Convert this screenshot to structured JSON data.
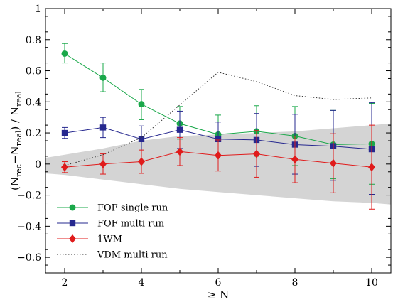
{
  "chart_data": {
    "type": "line",
    "xlabel": "≥ N",
    "ylabel": {
      "p1": "(N",
      "s1": "rec",
      "p2": "−N",
      "s2": "real",
      "p3": ") / N",
      "s3": "real"
    },
    "xlim": [
      1.5,
      10.5
    ],
    "ylim": [
      -0.7,
      1.0
    ],
    "xticks": [
      2,
      4,
      6,
      8,
      10
    ],
    "yticks": [
      -0.6,
      -0.4,
      -0.2,
      0,
      0.2,
      0.4,
      0.6,
      0.8,
      1
    ],
    "ytick_labels": [
      "−0.6",
      "−0.4",
      "−0.2",
      "0",
      "0.2",
      "0.4",
      "0.6",
      "0.8",
      "1"
    ],
    "shaded_band": {
      "color": "#d4d4d4",
      "x": [
        1.5,
        2,
        3,
        4,
        5,
        6,
        7,
        8,
        9,
        10,
        10.5
      ],
      "upper": [
        0.04,
        0.06,
        0.1,
        0.15,
        0.18,
        0.19,
        0.2,
        0.21,
        0.23,
        0.25,
        0.26
      ],
      "lower": [
        -0.06,
        -0.07,
        -0.1,
        -0.13,
        -0.16,
        -0.18,
        -0.2,
        -0.22,
        -0.24,
        -0.25,
        -0.26
      ]
    },
    "series": [
      {
        "name": "FOF single run",
        "color": "#1aa84a",
        "marker": "circle",
        "x": [
          2,
          3,
          4,
          5,
          6,
          7,
          8,
          9,
          10
        ],
        "y": [
          0.71,
          0.555,
          0.385,
          0.26,
          0.19,
          0.21,
          0.18,
          0.125,
          0.13
        ],
        "err_low": [
          0.06,
          0.09,
          0.1,
          0.1,
          0.12,
          0.16,
          0.19,
          0.22,
          0.26
        ],
        "err_high": [
          0.065,
          0.095,
          0.095,
          0.11,
          0.125,
          0.165,
          0.19,
          0.22,
          0.26
        ]
      },
      {
        "name": "FOF multi run",
        "color": "#26288f",
        "marker": "square",
        "x": [
          2,
          3,
          4,
          5,
          6,
          7,
          8,
          9,
          10
        ],
        "y": [
          0.2,
          0.235,
          0.16,
          0.22,
          0.16,
          0.155,
          0.125,
          0.115,
          0.095
        ],
        "err_low": [
          0.035,
          0.065,
          0.09,
          0.12,
          0.09,
          0.17,
          0.19,
          0.22,
          0.29
        ],
        "err_high": [
          0.035,
          0.065,
          0.085,
          0.12,
          0.11,
          0.17,
          0.195,
          0.23,
          0.3
        ]
      },
      {
        "name": "1WM",
        "color": "#e01b1b",
        "marker": "diamond",
        "x": [
          2,
          3,
          4,
          5,
          6,
          7,
          8,
          9,
          10
        ],
        "y": [
          -0.02,
          0.0,
          0.015,
          0.08,
          0.055,
          0.065,
          0.03,
          0.005,
          -0.02
        ],
        "err_low": [
          0.035,
          0.065,
          0.075,
          0.09,
          0.1,
          0.15,
          0.15,
          0.19,
          0.27
        ],
        "err_high": [
          0.035,
          0.065,
          0.075,
          0.09,
          0.1,
          0.15,
          0.15,
          0.19,
          0.27
        ]
      },
      {
        "name": "VDM multi run",
        "color": "#333333",
        "marker": "none",
        "dashed": true,
        "x": [
          2,
          3,
          4,
          5,
          6,
          7,
          8,
          9,
          10
        ],
        "y": [
          -0.01,
          0.06,
          0.17,
          0.38,
          0.59,
          0.53,
          0.44,
          0.415,
          0.425
        ]
      }
    ],
    "legend": {
      "position": "bottom-left"
    }
  }
}
